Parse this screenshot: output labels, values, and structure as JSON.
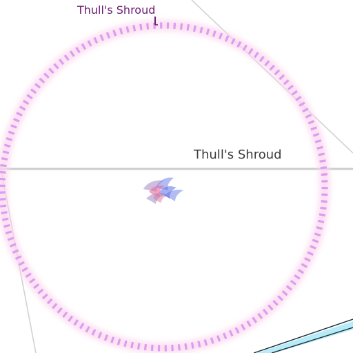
{
  "map": {
    "labels": {
      "area_name": "Thull's Shroud",
      "road_name": "Thull's Shroud"
    },
    "colors": {
      "background": "#ffffff",
      "area_ring": "#dc9cf0",
      "area_glow": "#fbd5ee",
      "area_label": "#6a1b6f",
      "road": "#cccccc",
      "road_label": "#3a3a3a",
      "river_fill": "#b6ecf7",
      "river_edge": "#1f2a33"
    },
    "icons": {
      "center_marker": "flame-cluster-icon"
    }
  }
}
